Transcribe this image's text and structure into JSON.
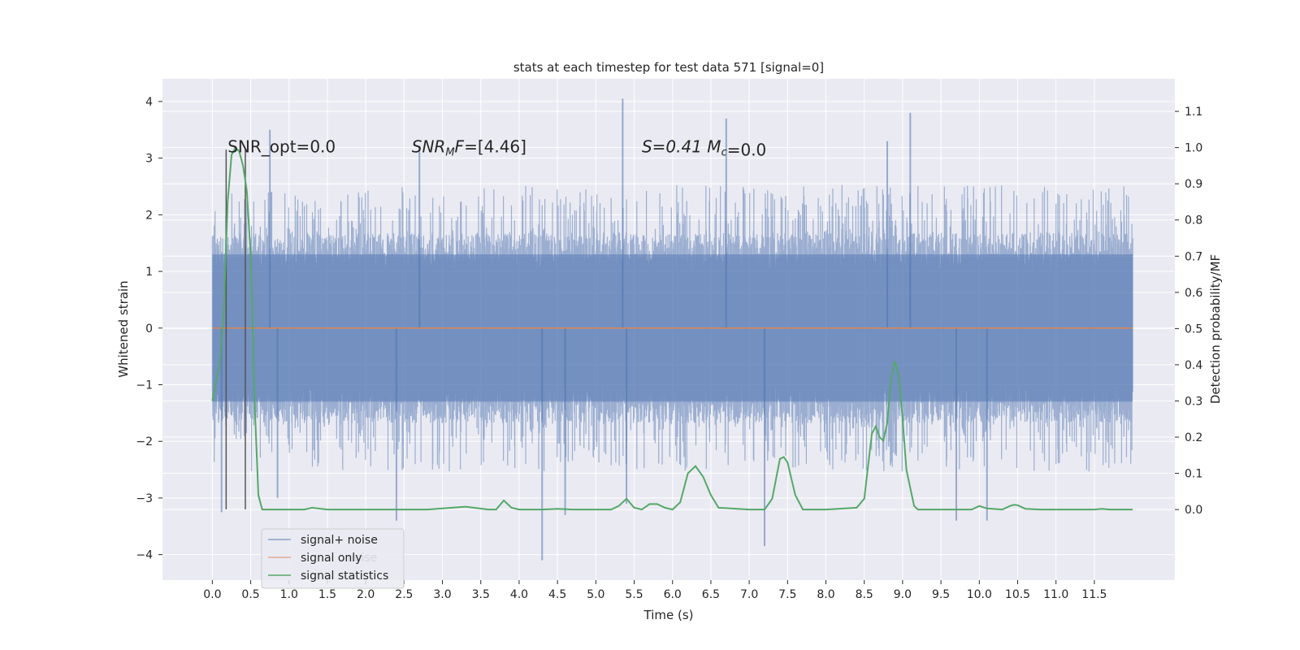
{
  "chart_data": {
    "type": "line",
    "title": "stats at each timestep for test data 571 [signal=0]",
    "xlabel": "Time (s)",
    "ylabel_left": "Whitened strain",
    "ylabel_right": "Detection probability/MF",
    "xlim": [
      -0.65,
      12.55
    ],
    "ylim_left": [
      -4.45,
      4.4
    ],
    "ylim_right": [
      -0.195,
      1.19
    ],
    "x_ticks": [
      0.0,
      0.5,
      1.0,
      1.5,
      2.0,
      2.5,
      3.0,
      3.5,
      4.0,
      4.5,
      5.0,
      5.5,
      6.0,
      6.5,
      7.0,
      7.5,
      8.0,
      8.5,
      9.0,
      9.5,
      10.0,
      10.5,
      11.0,
      11.5
    ],
    "x_tick_labels": [
      "0.0",
      "0.5",
      "1.0",
      "1.5",
      "2.0",
      "2.5",
      "3.0",
      "3.5",
      "4.0",
      "4.5",
      "5.0",
      "5.5",
      "6.0",
      "6.5",
      "7.0",
      "7.5",
      "8.0",
      "8.5",
      "9.0",
      "9.5",
      "10.0",
      "10.5",
      "11.0",
      "11.5"
    ],
    "y_left_ticks": [
      -4,
      -3,
      -2,
      -1,
      0,
      1,
      2,
      3,
      4
    ],
    "y_left_tick_labels": [
      "−4",
      "−3",
      "−2",
      "−1",
      "0",
      "1",
      "2",
      "3",
      "4"
    ],
    "y_right_ticks": [
      0.0,
      0.1,
      0.2,
      0.3,
      0.4,
      0.5,
      0.6,
      0.7,
      0.8,
      0.9,
      1.0,
      1.1
    ],
    "y_right_tick_labels": [
      "0.0",
      "0.1",
      "0.2",
      "0.3",
      "0.4",
      "0.5",
      "0.6",
      "0.7",
      "0.8",
      "0.9",
      "1.0",
      "1.1"
    ],
    "grid": true,
    "legend_position": "lower-left",
    "annotations": [
      {
        "text": "SNR_opt=0.0",
        "x": 0.2,
        "y": 3.2
      },
      {
        "text": "SNR_MF=[4.46]",
        "x": 2.6,
        "y": 3.2
      },
      {
        "text": "S=0.41   M_c=0.0",
        "x": 5.6,
        "y": 3.2
      }
    ],
    "vertical_markers": [
      0.18,
      0.43
    ],
    "series": [
      {
        "name": "signal+ noise",
        "color": "#4c72b0",
        "axis": "left",
        "kind": "noise",
        "x_range": [
          0.0,
          12.0
        ],
        "core_band": [
          -1.3,
          1.3
        ],
        "typical_peak_range": [
          -2.3,
          2.3
        ],
        "spikes": [
          {
            "x": 0.75,
            "y": 3.5
          },
          {
            "x": 2.7,
            "y": 3.2
          },
          {
            "x": 5.35,
            "y": 4.05
          },
          {
            "x": 6.7,
            "y": 3.7
          },
          {
            "x": 8.8,
            "y": 3.3
          },
          {
            "x": 9.1,
            "y": 3.8
          },
          {
            "x": 4.3,
            "y": -4.1
          },
          {
            "x": 7.2,
            "y": -3.85
          },
          {
            "x": 2.4,
            "y": -3.4
          },
          {
            "x": 4.6,
            "y": -3.3
          },
          {
            "x": 9.7,
            "y": -3.4
          },
          {
            "x": 10.1,
            "y": -3.4
          },
          {
            "x": 0.12,
            "y": -3.25
          },
          {
            "x": 0.85,
            "y": -3.0
          },
          {
            "x": 5.4,
            "y": -3.1
          }
        ]
      },
      {
        "name": "signal only",
        "color": "#dd8452",
        "axis": "left",
        "x": [
          0.0,
          12.0
        ],
        "y": [
          0.0,
          0.0
        ]
      },
      {
        "name": "signal statistics",
        "color": "#55a868",
        "axis": "right",
        "x": [
          0.0,
          0.1,
          0.15,
          0.2,
          0.25,
          0.3,
          0.35,
          0.4,
          0.45,
          0.5,
          0.55,
          0.6,
          0.65,
          0.7,
          0.75,
          1.0,
          1.2,
          1.3,
          1.5,
          2.0,
          2.5,
          2.8,
          3.0,
          3.3,
          3.6,
          3.7,
          3.8,
          3.9,
          4.0,
          4.3,
          4.5,
          4.7,
          5.0,
          5.2,
          5.3,
          5.4,
          5.5,
          5.6,
          5.7,
          5.8,
          5.9,
          6.0,
          6.1,
          6.2,
          6.3,
          6.4,
          6.5,
          6.6,
          7.0,
          7.2,
          7.3,
          7.4,
          7.45,
          7.5,
          7.6,
          7.7,
          8.0,
          8.4,
          8.5,
          8.6,
          8.65,
          8.7,
          8.75,
          8.8,
          8.85,
          8.9,
          8.95,
          9.0,
          9.05,
          9.1,
          9.15,
          9.2,
          9.5,
          9.8,
          9.9,
          10.0,
          10.1,
          10.3,
          10.4,
          10.45,
          10.5,
          10.6,
          10.8,
          11.0,
          11.5,
          11.6,
          11.7,
          12.0
        ],
        "y": [
          0.3,
          0.41,
          0.55,
          0.85,
          0.98,
          1.0,
          0.99,
          0.95,
          0.88,
          0.7,
          0.3,
          0.04,
          0.0,
          0.0,
          0.0,
          0.0,
          0.0,
          0.005,
          0.0,
          0.0,
          0.0,
          0.0,
          0.003,
          0.008,
          0.0,
          0.0,
          0.025,
          0.005,
          0.0,
          0.0,
          0.002,
          0.0,
          0.0,
          0.0,
          0.01,
          0.03,
          0.005,
          0.0,
          0.015,
          0.015,
          0.005,
          0.0,
          0.02,
          0.1,
          0.12,
          0.09,
          0.04,
          0.005,
          0.0,
          0.0,
          0.03,
          0.14,
          0.145,
          0.13,
          0.04,
          0.0,
          0.0,
          0.005,
          0.03,
          0.21,
          0.23,
          0.2,
          0.19,
          0.24,
          0.36,
          0.41,
          0.37,
          0.25,
          0.11,
          0.06,
          0.01,
          0.0,
          0.0,
          0.0,
          0.0,
          0.01,
          0.003,
          0.0,
          0.01,
          0.013,
          0.012,
          0.002,
          0.0,
          0.0,
          0.0,
          0.002,
          0.0,
          0.0
        ]
      }
    ]
  },
  "legend": {
    "items": [
      {
        "label": "signal+ noise",
        "color": "#4c72b0"
      },
      {
        "label": "signal only",
        "color": "#dd8452"
      },
      {
        "label": "signal statistics",
        "color": "#55a868"
      }
    ],
    "ghost_label": "noise"
  },
  "colors": {
    "axes_bg": "#eaeaf2",
    "grid": "#ffffff",
    "marker_line": "#555555"
  }
}
